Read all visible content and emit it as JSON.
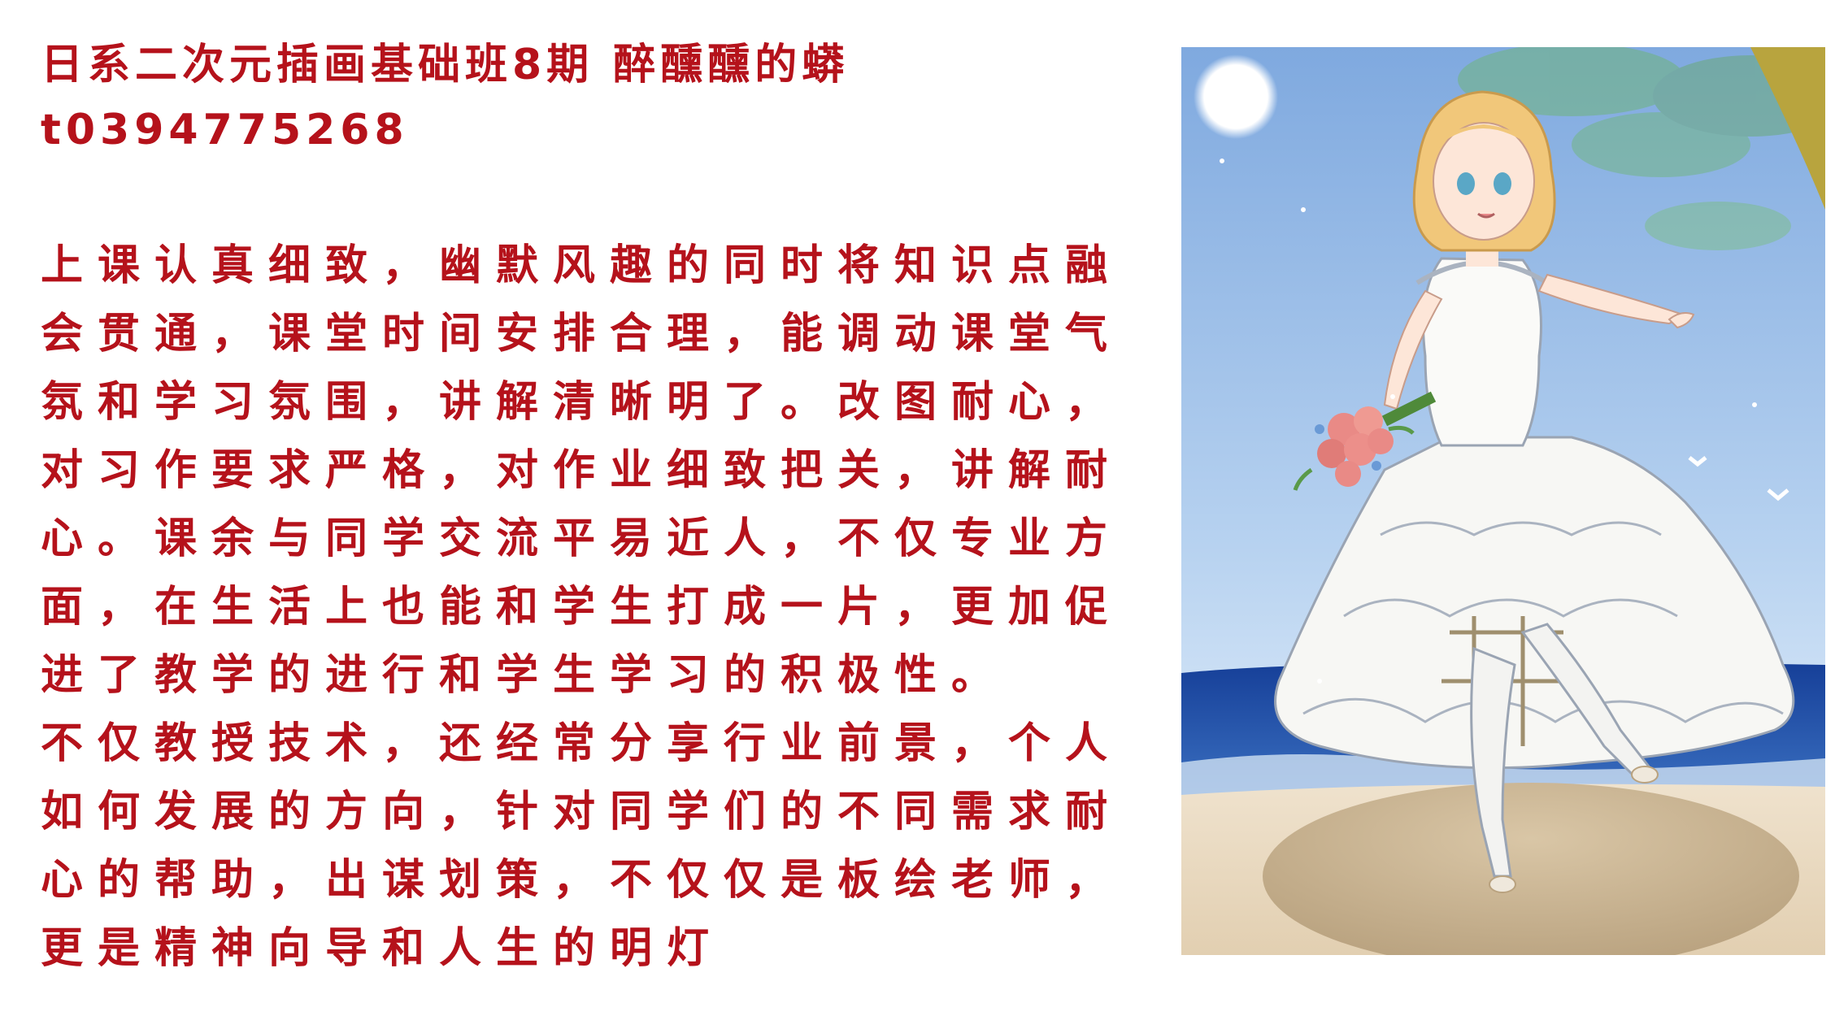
{
  "title": {
    "line1": "日系二次元插画基础班8期 醉醺醺的蟒",
    "line2": "t0394775268"
  },
  "review": {
    "lines": [
      "上课认真细致，幽默风趣的同时将知识点融",
      "会贯通，课堂时间安排合理，能调动课堂气",
      "氛和学习氛围，讲解清晰明了。改图耐心，",
      "对习作要求严格，对作业细致把关，讲解耐",
      "心。课余与同学交流平易近人，不仅专业方",
      "面，在生活上也能和学生打成一片，更加促",
      "进了教学的进行和学生学习的积极性。",
      "不仅教授技术，还经常分享行业前景，个人",
      "如何发展的方向，针对同学们的不同需求耐",
      "心的帮助，出谋划策，不仅仅是板绘老师，",
      "更是精神向导和人生的明灯"
    ]
  },
  "illustration": {
    "subject": "anime-girl-in-white-wedding-dress-holding-bouquet-on-beach",
    "colors": {
      "sky_top": "#8fb7e6",
      "sky_bottom": "#cfe3f6",
      "sea": "#1f4fa8",
      "sand": "#e8d8bf",
      "dress": "#f7f7f4",
      "hair": "#f1c77a",
      "bouquet": "#e98a86",
      "text": "#b5121b"
    }
  }
}
